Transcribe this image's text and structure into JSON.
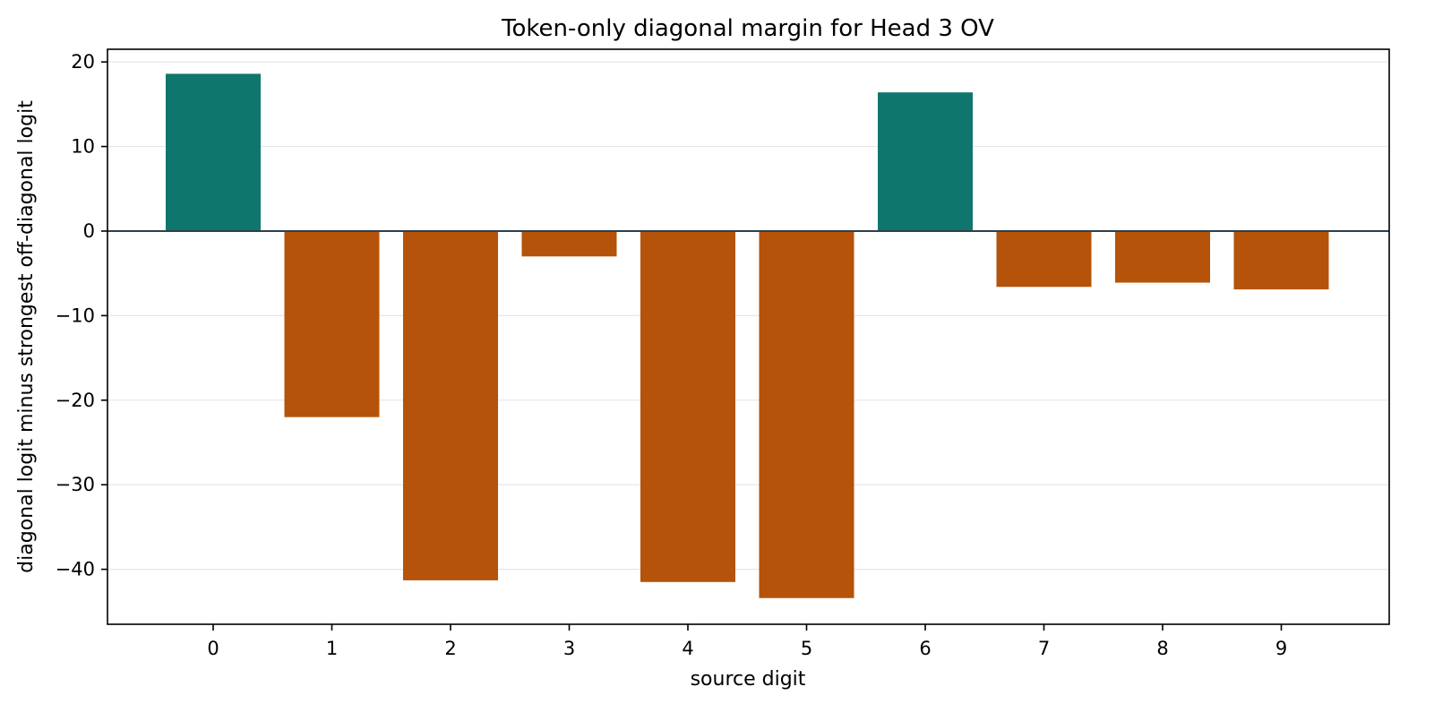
{
  "chart_data": {
    "type": "bar",
    "title": "Token-only diagonal margin for Head 3 OV",
    "xlabel": "source digit",
    "ylabel": "diagonal logit minus strongest off-diagonal logit",
    "categories": [
      "0",
      "1",
      "2",
      "3",
      "4",
      "5",
      "6",
      "7",
      "8",
      "9"
    ],
    "values": [
      18.6,
      -22.0,
      -41.3,
      -3.0,
      -41.5,
      -43.4,
      16.4,
      -6.6,
      -6.1,
      -6.9
    ],
    "ylim": [
      -46.5,
      21.5
    ],
    "yticks": [
      20,
      10,
      0,
      -10,
      -20,
      -30,
      -40
    ],
    "ytick_labels": [
      "20",
      "10",
      "0",
      "−10",
      "−20",
      "−30",
      "−40"
    ],
    "grid": true,
    "legend": "none",
    "colors": {
      "positive": "#0f766e",
      "negative": "#b45309",
      "zero_line": "#2f3f4a",
      "grid": "#e6e6e6",
      "frame": "#000000"
    }
  }
}
